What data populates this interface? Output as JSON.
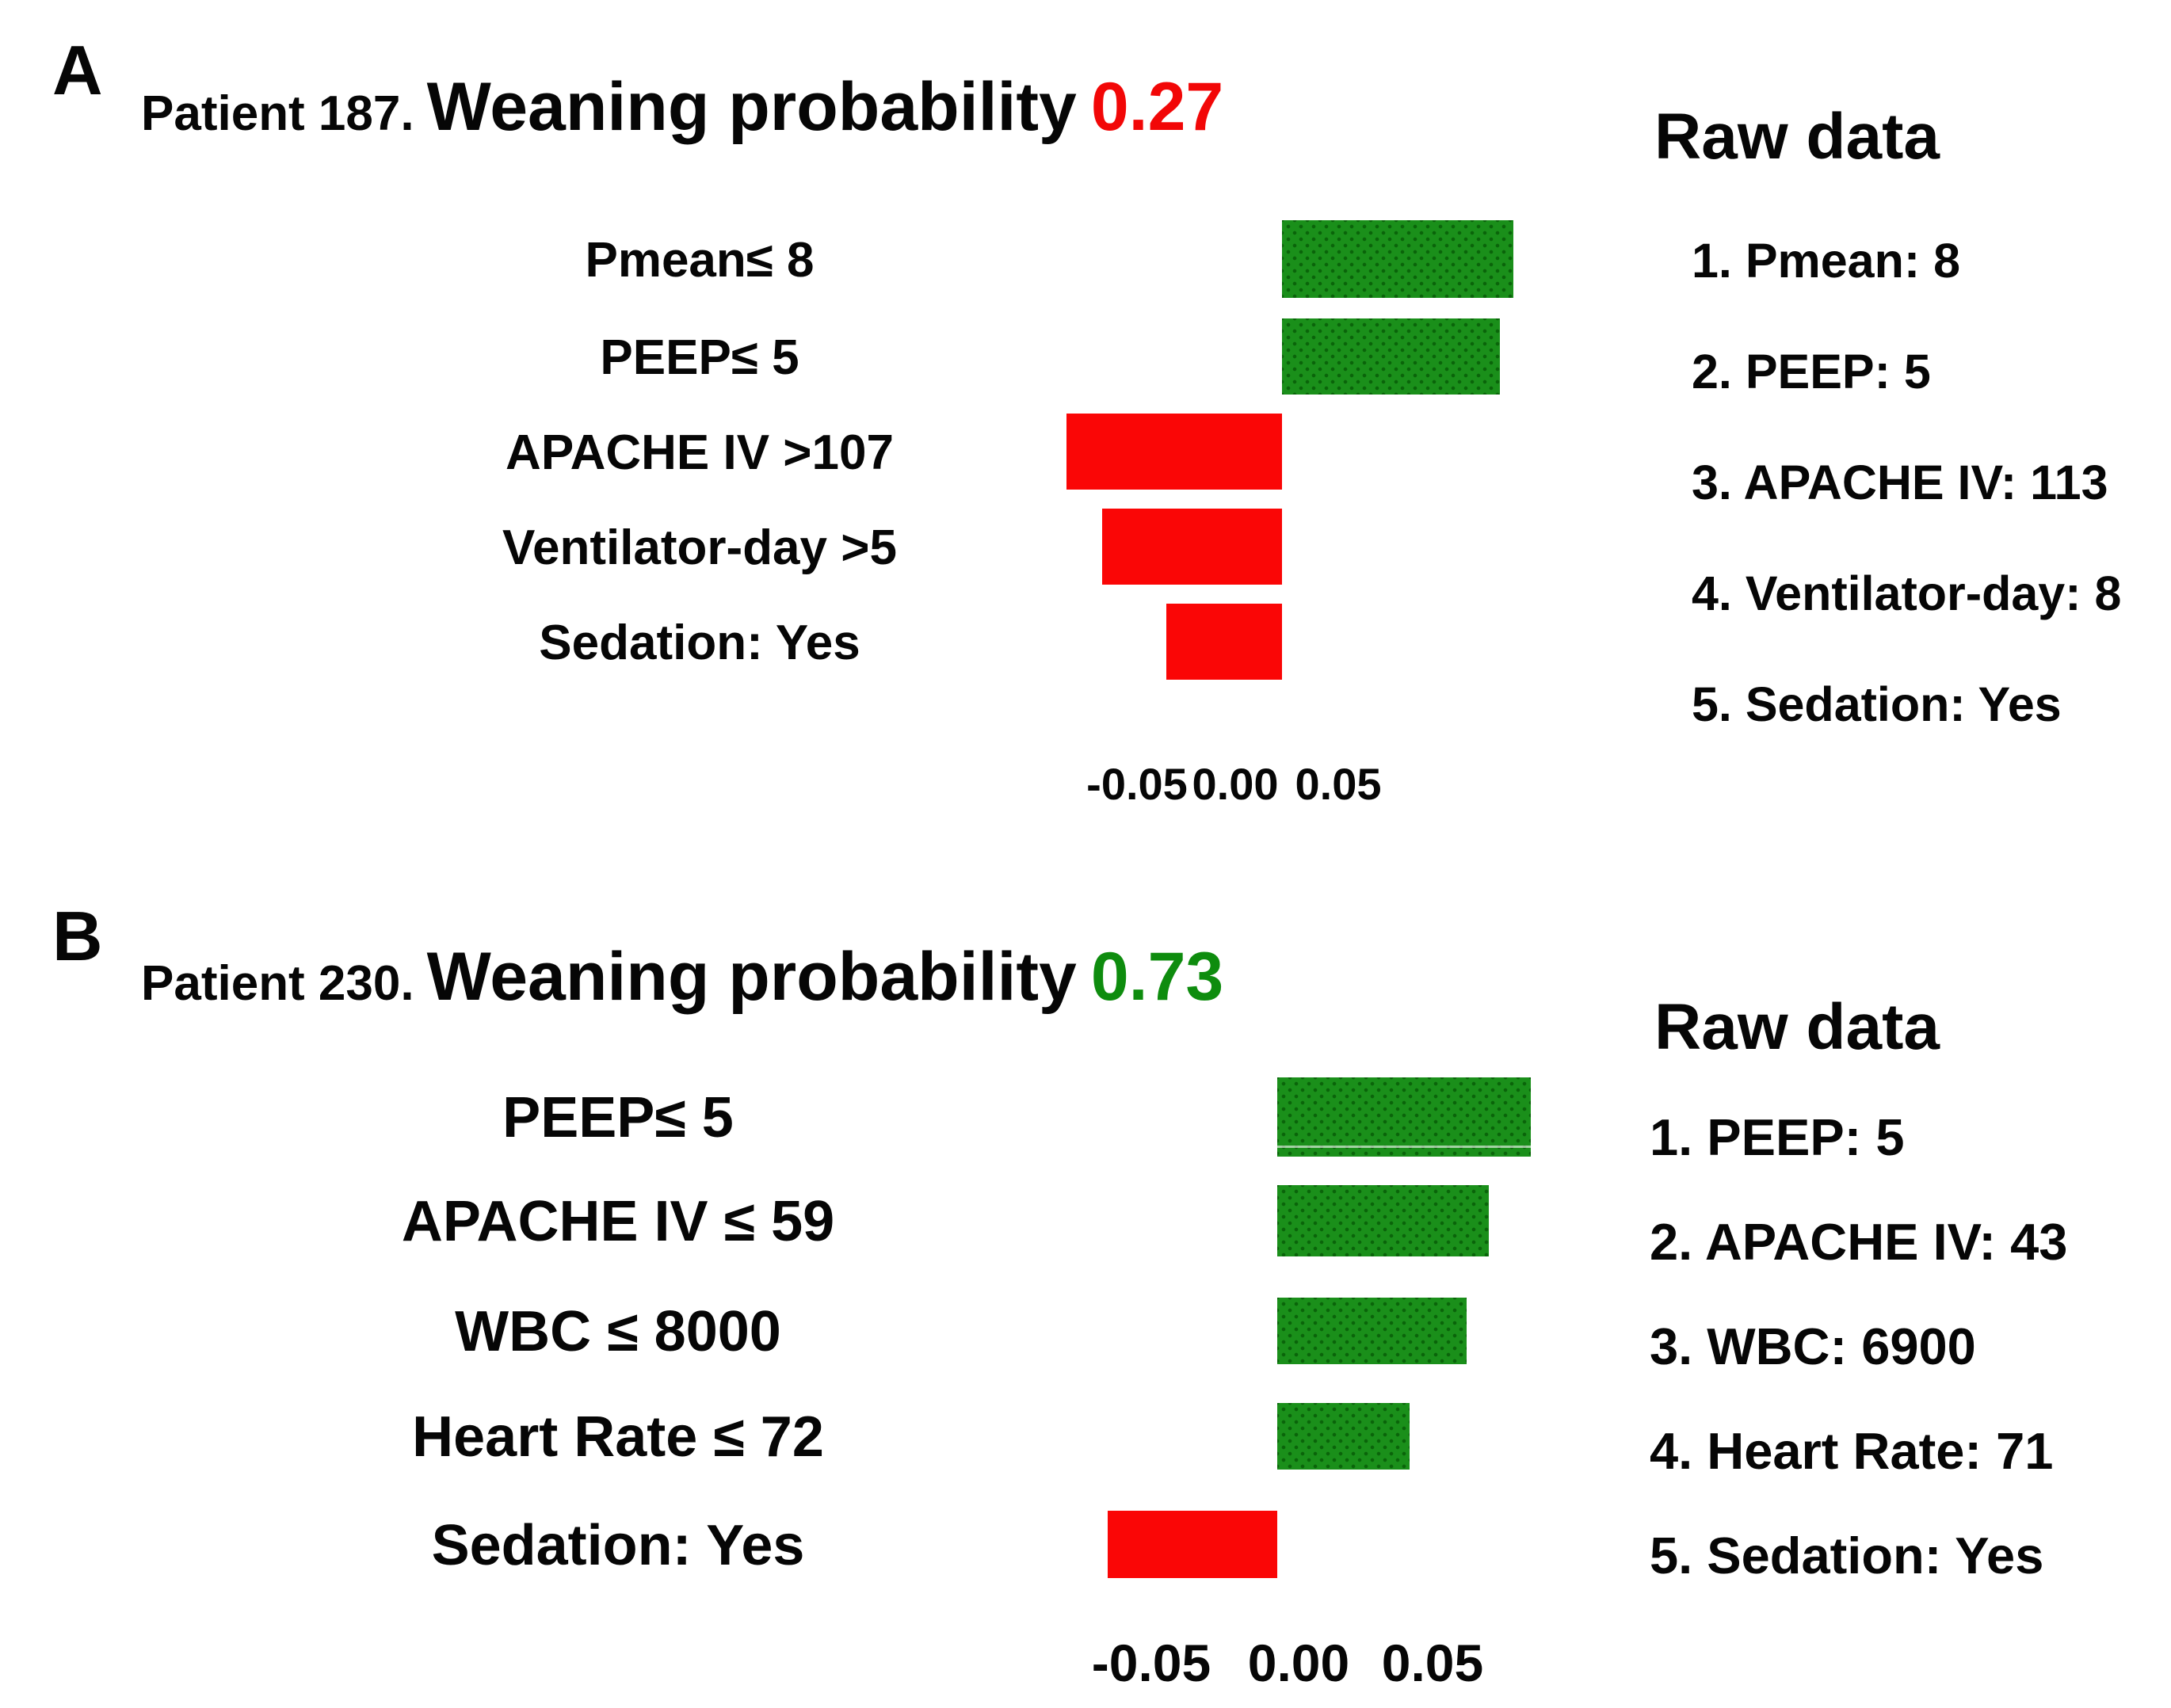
{
  "figure_title": "Per-patient weaning probability explanation with feature contributions and raw data",
  "panels": [
    {
      "id": "A",
      "panel_label": "A",
      "title_prefix": "Patient 187.",
      "title_main": "Weaning probability",
      "probability": "0.27",
      "probability_color": "#f20707",
      "rows": [
        {
          "label": "Pmean≤ 8",
          "value": 0.116
        },
        {
          "label": "PEEP≤ 5",
          "value": 0.109
        },
        {
          "label": "APACHE IV >107",
          "value": -0.108
        },
        {
          "label": "Ventilator-day >5",
          "value": -0.09
        },
        {
          "label": "Sedation: Yes",
          "value": -0.058
        }
      ],
      "ticks": [
        "-0.05",
        "0.00",
        "0.05"
      ],
      "raw": {
        "header": "Raw data",
        "items": [
          "1. Pmean: 8",
          "2. PEEP: 5",
          "3. APACHE IV: 113",
          "4. Ventilator-day: 8",
          "5. Sedation: Yes"
        ]
      }
    },
    {
      "id": "B",
      "panel_label": "B",
      "title_prefix": "Patient 230.",
      "title_main": "Weaning probability",
      "probability": "0.73",
      "probability_color": "#0e8c0e",
      "rows": [
        {
          "label": "PEEP≤ 5",
          "value": 0.09
        },
        {
          "label": "APACHE IV ≤ 59",
          "value": 0.075
        },
        {
          "label": "WBC ≤ 8000",
          "value": 0.067
        },
        {
          "label": "Heart Rate ≤ 72",
          "value": 0.047
        },
        {
          "label": "Sedation: Yes",
          "value": -0.06
        }
      ],
      "ticks": [
        "-0.05",
        "0.00",
        "0.05"
      ],
      "raw": {
        "header": "Raw data",
        "items": [
          "1. PEEP: 5",
          "2. APACHE IV: 43",
          "3. WBC: 6900",
          "4. Heart Rate: 71",
          "5. Sedation: Yes"
        ]
      }
    }
  ],
  "colors": {
    "positive_bar": "#1a8f1a",
    "positive_bar_dot": "#0a640a",
    "negative_bar": "#fa0606",
    "probability_red": "#f20707",
    "probability_green": "#0e8c0e",
    "text": "#060606"
  },
  "chart_data": [
    {
      "type": "bar",
      "orientation": "horizontal",
      "title": "Patient 187. Weaning probability 0.27",
      "patient": "Patient 187",
      "weaning_probability": 0.27,
      "categories": [
        "Pmean≤ 8",
        "PEEP≤ 5",
        "APACHE IV >107",
        "Ventilator-day >5",
        "Sedation: Yes"
      ],
      "values": [
        0.116,
        0.109,
        -0.108,
        -0.09,
        -0.058
      ],
      "xticks": [
        -0.05,
        0.0,
        0.05
      ],
      "xlim": [
        -0.11,
        0.13
      ],
      "grid": false,
      "legend": false,
      "positive_color": "#1a8f1a",
      "negative_color": "#fa0606",
      "raw_data": {
        "Pmean": 8,
        "PEEP": 5,
        "APACHE IV": 113,
        "Ventilator-day": 8,
        "Sedation": "Yes"
      }
    },
    {
      "type": "bar",
      "orientation": "horizontal",
      "title": "Patient 230. Weaning probability 0.73",
      "patient": "Patient 230",
      "weaning_probability": 0.73,
      "categories": [
        "PEEP≤ 5",
        "APACHE IV ≤ 59",
        "WBC ≤ 8000",
        "Heart Rate ≤ 72",
        "Sedation: Yes"
      ],
      "values": [
        0.09,
        0.075,
        0.067,
        0.047,
        -0.06
      ],
      "xticks": [
        -0.05,
        0.0,
        0.05
      ],
      "xlim": [
        -0.08,
        0.1
      ],
      "grid": false,
      "legend": false,
      "positive_color": "#1a8f1a",
      "negative_color": "#fa0606",
      "raw_data": {
        "PEEP": 5,
        "APACHE IV": 43,
        "WBC": 6900,
        "Heart Rate": 71,
        "Sedation": "Yes"
      }
    }
  ]
}
